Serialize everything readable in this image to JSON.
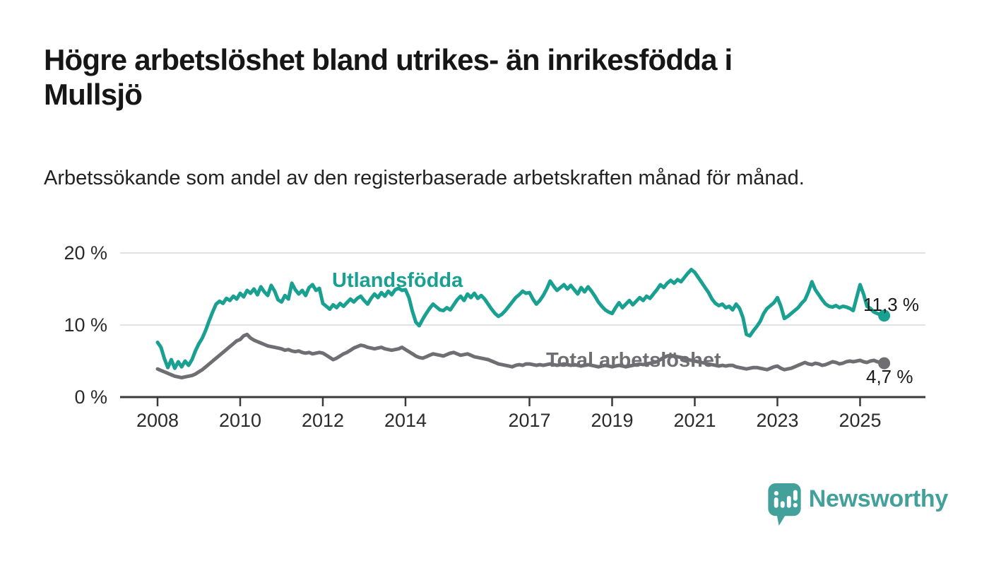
{
  "header": {
    "title_line1": "Högre arbetslöshet bland utrikes- än inrikesfödda i",
    "title_line2": "Mullsjö",
    "subtitle": "Arbetssökande som andel av den registerbaserade arbetskraften månad för månad."
  },
  "chart_data": {
    "type": "line",
    "unit": "%",
    "x_start_year": 2008,
    "x_frequency": "monthly",
    "x_end": "2025-08",
    "grid": "horizontal",
    "ylim": [
      0,
      21
    ],
    "yticks": [
      {
        "value": 20,
        "label": "20 %"
      },
      {
        "value": 10,
        "label": "10 %"
      },
      {
        "value": 0,
        "label": "0 %"
      }
    ],
    "xticks": [
      {
        "year": 2008,
        "label": "2008"
      },
      {
        "year": 2010,
        "label": "2010"
      },
      {
        "year": 2012,
        "label": "2012"
      },
      {
        "year": 2014,
        "label": "2014"
      },
      {
        "year": 2017,
        "label": "2017"
      },
      {
        "year": 2019,
        "label": "2019"
      },
      {
        "year": 2021,
        "label": "2021"
      },
      {
        "year": 2023,
        "label": "2023"
      },
      {
        "year": 2025,
        "label": "2025"
      }
    ],
    "series": [
      {
        "name": "Utlandsfödda",
        "color": "#19a091",
        "end_label": "11,3 %",
        "end_value": 11.3,
        "values": [
          7.6,
          6.9,
          5.3,
          4.1,
          5.2,
          4.0,
          4.9,
          4.2,
          5.0,
          4.4,
          5.2,
          6.4,
          7.4,
          8.2,
          9.3,
          10.6,
          11.8,
          12.9,
          13.3,
          13.0,
          13.7,
          13.4,
          14.0,
          13.6,
          14.4,
          13.9,
          14.8,
          14.4,
          15.0,
          14.2,
          15.3,
          14.6,
          14.1,
          15.5,
          14.7,
          13.5,
          13.2,
          14.1,
          13.6,
          15.8,
          14.9,
          14.3,
          14.8,
          14.1,
          15.2,
          15.6,
          14.8,
          15.1,
          13.0,
          12.6,
          12.2,
          12.8,
          12.4,
          13.0,
          12.6,
          13.1,
          13.6,
          13.2,
          13.7,
          14.0,
          13.4,
          12.9,
          13.7,
          14.3,
          13.8,
          14.5,
          14.0,
          14.7,
          14.2,
          14.9,
          15.1,
          14.8,
          14.9,
          13.8,
          11.9,
          10.4,
          9.9,
          10.8,
          11.6,
          12.3,
          12.9,
          12.5,
          12.1,
          12.0,
          12.4,
          12.1,
          12.8,
          13.5,
          14.0,
          13.4,
          14.3,
          13.8,
          14.4,
          13.7,
          14.1,
          13.6,
          12.9,
          12.2,
          11.6,
          11.2,
          11.5,
          12.0,
          12.6,
          13.2,
          13.8,
          14.2,
          14.7,
          14.4,
          14.5,
          13.6,
          12.9,
          13.4,
          14.1,
          15.0,
          16.1,
          15.4,
          14.8,
          15.2,
          15.6,
          15.0,
          15.5,
          14.9,
          14.3,
          15.2,
          14.6,
          15.3,
          14.7,
          14.0,
          13.2,
          12.6,
          12.1,
          11.8,
          11.6,
          12.4,
          13.1,
          12.4,
          12.9,
          13.4,
          12.8,
          13.3,
          13.8,
          13.4,
          14.0,
          13.7,
          14.3,
          14.9,
          15.6,
          15.2,
          15.8,
          16.2,
          15.8,
          16.3,
          16.0,
          16.6,
          17.2,
          17.7,
          17.3,
          16.6,
          15.9,
          15.2,
          14.5,
          13.6,
          13.0,
          12.7,
          12.9,
          12.4,
          12.6,
          12.1,
          12.9,
          12.3,
          11.0,
          8.7,
          8.5,
          9.2,
          9.8,
          10.5,
          11.6,
          12.3,
          12.7,
          13.1,
          13.8,
          12.6,
          10.9,
          11.2,
          11.6,
          12.0,
          12.4,
          13.0,
          13.5,
          14.6,
          16.0,
          14.9,
          14.2,
          13.5,
          12.9,
          12.6,
          12.5,
          12.7,
          12.4,
          12.6,
          12.5,
          12.3,
          12.0,
          13.8,
          15.6,
          14.3,
          12.6,
          12.3,
          11.8,
          11.6,
          11.4,
          11.3
        ]
      },
      {
        "name": "Total arbetslöshet",
        "color": "#6e6e73",
        "end_label": "4,7 %",
        "end_value": 4.7,
        "values": [
          3.9,
          3.7,
          3.5,
          3.3,
          3.1,
          2.9,
          2.8,
          2.7,
          2.8,
          2.9,
          3.0,
          3.2,
          3.5,
          3.8,
          4.2,
          4.6,
          5.0,
          5.4,
          5.8,
          6.2,
          6.6,
          7.0,
          7.4,
          7.8,
          8.0,
          8.5,
          8.7,
          8.2,
          7.9,
          7.7,
          7.5,
          7.3,
          7.1,
          7.0,
          6.9,
          6.8,
          6.7,
          6.5,
          6.6,
          6.4,
          6.3,
          6.4,
          6.2,
          6.1,
          6.2,
          6.0,
          6.1,
          6.2,
          6.1,
          5.8,
          5.5,
          5.2,
          5.4,
          5.7,
          6.0,
          6.2,
          6.5,
          6.8,
          7.0,
          7.2,
          7.1,
          6.9,
          6.8,
          6.7,
          6.8,
          6.9,
          6.7,
          6.6,
          6.5,
          6.6,
          6.7,
          6.9,
          6.6,
          6.3,
          6.0,
          5.7,
          5.5,
          5.4,
          5.6,
          5.8,
          6.0,
          5.9,
          5.8,
          5.7,
          5.9,
          6.1,
          6.2,
          6.0,
          5.8,
          5.9,
          6.0,
          5.8,
          5.6,
          5.5,
          5.4,
          5.3,
          5.2,
          5.0,
          4.8,
          4.6,
          4.5,
          4.4,
          4.3,
          4.2,
          4.4,
          4.5,
          4.4,
          4.6,
          4.6,
          4.5,
          4.4,
          4.5,
          4.4,
          4.5,
          4.6,
          4.5,
          4.4,
          4.5,
          4.6,
          4.5,
          4.4,
          4.5,
          4.4,
          4.3,
          4.4,
          4.5,
          4.4,
          4.3,
          4.2,
          4.3,
          4.4,
          4.3,
          4.2,
          4.3,
          4.4,
          4.3,
          4.2,
          4.3,
          4.4,
          4.5,
          4.6,
          4.5,
          4.6,
          4.7,
          4.8,
          4.9,
          5.2,
          5.5,
          5.7,
          5.8,
          5.7,
          5.6,
          5.5,
          5.4,
          5.2,
          5.1,
          5.0,
          4.9,
          4.8,
          4.7,
          4.6,
          4.5,
          4.4,
          4.3,
          4.4,
          4.3,
          4.4,
          4.4,
          4.2,
          4.1,
          4.0,
          3.9,
          4.0,
          4.1,
          4.1,
          4.0,
          3.9,
          3.8,
          4.0,
          4.2,
          4.3,
          4.0,
          3.8,
          3.9,
          4.0,
          4.2,
          4.4,
          4.6,
          4.8,
          4.6,
          4.5,
          4.7,
          4.6,
          4.4,
          4.5,
          4.7,
          4.9,
          4.8,
          4.6,
          4.7,
          4.9,
          5.0,
          4.9,
          5.0,
          5.1,
          4.9,
          4.8,
          5.0,
          5.1,
          4.9,
          4.8,
          4.7
        ]
      }
    ],
    "style": {
      "grid_color": "#d9d9d9",
      "axis_color": "#3a3a3a",
      "tick_text_color": "#2b2b2b"
    }
  },
  "branding": {
    "logo_text": "Newsworthy",
    "logo_color": "#44a09b"
  }
}
